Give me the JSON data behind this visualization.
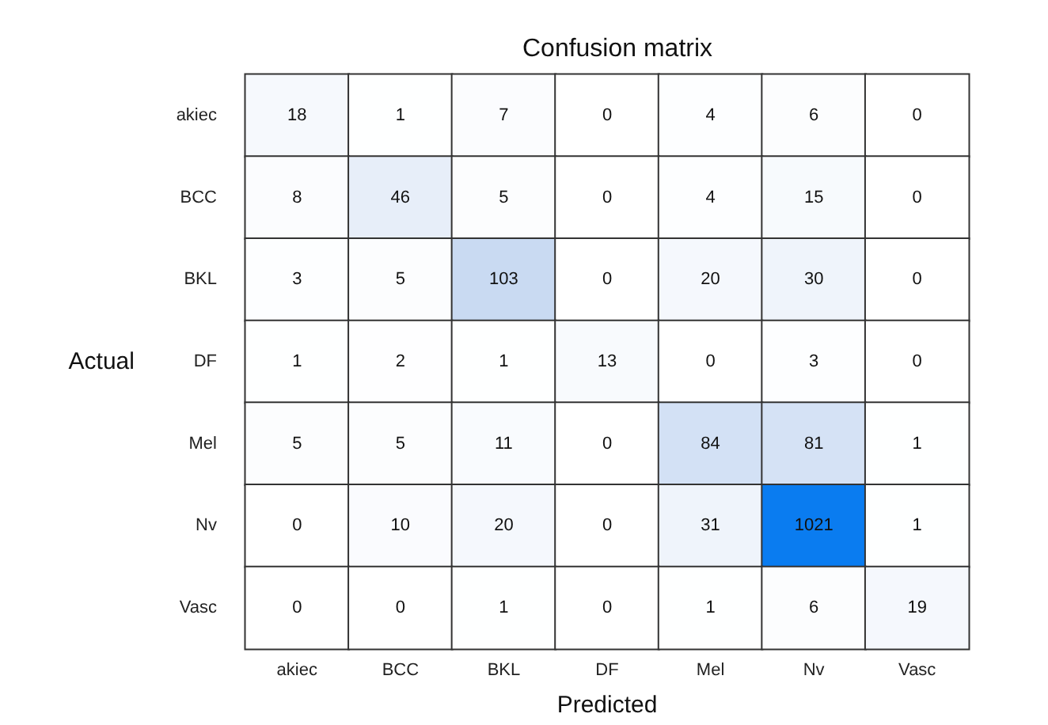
{
  "chart_data": {
    "type": "heatmap",
    "data_labels": true,
    "title": "Confusion matrix",
    "xlabel": "Predicted",
    "ylabel": "Actual",
    "categories": [
      "akiec",
      "BCC",
      "BKL",
      "DF",
      "Mel",
      "Nv",
      "Vasc"
    ],
    "y_categories": [
      "akiec",
      "BCC",
      "BKL",
      "DF",
      "Mel",
      "Nv",
      "Vasc"
    ],
    "cells": [
      [
        18,
        1,
        7,
        0,
        4,
        6,
        0
      ],
      [
        8,
        46,
        5,
        0,
        4,
        15,
        0
      ],
      [
        3,
        5,
        103,
        0,
        20,
        30,
        0
      ],
      [
        1,
        2,
        1,
        13,
        0,
        3,
        0
      ],
      [
        5,
        5,
        11,
        0,
        84,
        81,
        1
      ],
      [
        0,
        10,
        20,
        0,
        31,
        1021,
        1
      ],
      [
        0,
        0,
        1,
        0,
        1,
        6,
        19
      ]
    ]
  }
}
